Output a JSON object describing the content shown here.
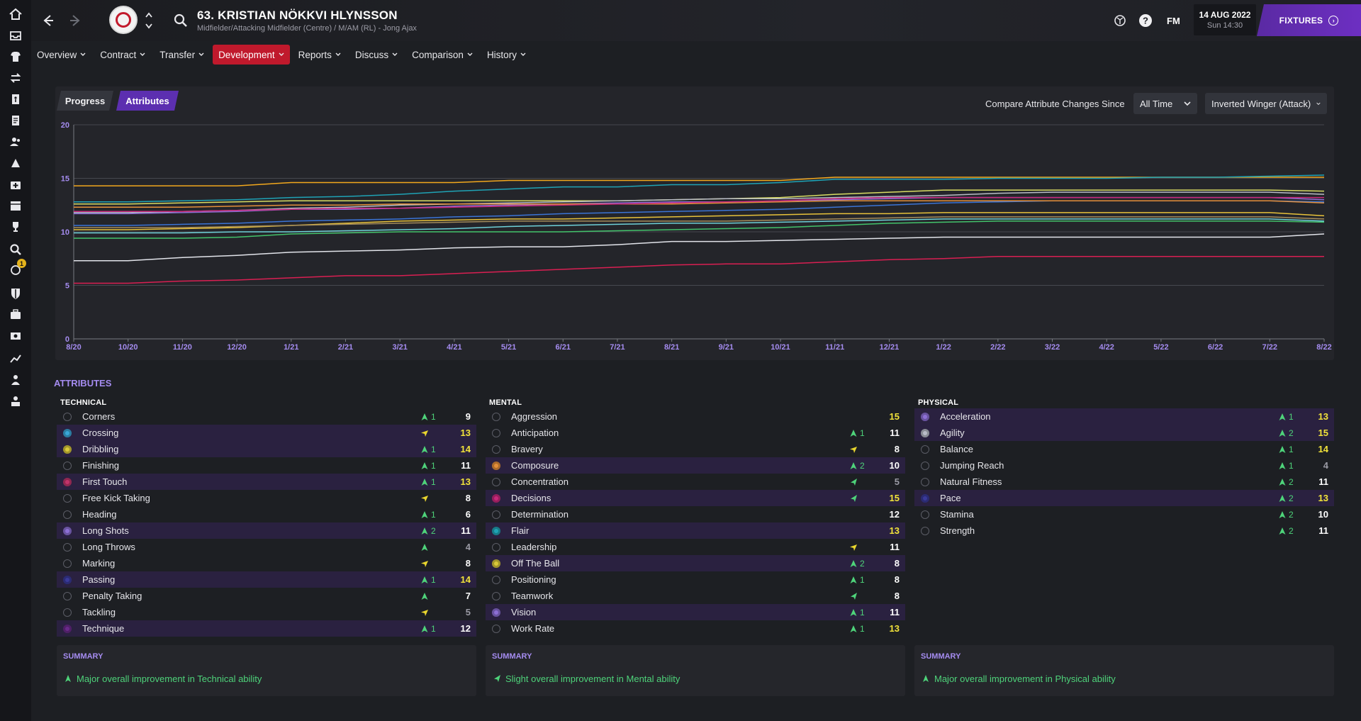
{
  "header": {
    "player_name": "63. KRISTIAN NÖKKVI HLYNSSON",
    "player_subtitle": "Midfielder/Attacking Midfielder (Centre) / M/AM (RL) - Jong Ajax",
    "fm_label": "FM",
    "date": "14 AUG 2022",
    "time": "Sun 14:30",
    "fixtures_label": "FIXTURES"
  },
  "sidebar": {
    "items": [
      "home-icon",
      "inbox-icon",
      "squad-icon",
      "transfers-icon",
      "tactics-icon",
      "clipboard-icon",
      "staff-icon",
      "training-icon",
      "medical-icon",
      "calendar-icon",
      "trophy-icon",
      "search-icon",
      "scouting-icon",
      "club-icon",
      "finances-icon",
      "money-icon",
      "analytics-icon",
      "development-icon",
      "career-icon"
    ],
    "badge": "1"
  },
  "tabs": [
    {
      "label": "Overview"
    },
    {
      "label": "Contract"
    },
    {
      "label": "Transfer"
    },
    {
      "label": "Development"
    },
    {
      "label": "Reports"
    },
    {
      "label": "Discuss"
    },
    {
      "label": "Comparison"
    },
    {
      "label": "History"
    }
  ],
  "chart_controls": {
    "progress_label": "Progress",
    "attributes_label": "Attributes",
    "compare_label": "Compare Attribute Changes Since",
    "period_value": "All Time",
    "role_value": "Inverted Winger (Attack)"
  },
  "chart_data": {
    "type": "line",
    "x": [
      "8/20",
      "10/20",
      "11/20",
      "12/20",
      "1/21",
      "2/21",
      "3/21",
      "4/21",
      "5/21",
      "6/21",
      "7/21",
      "8/21",
      "9/21",
      "10/21",
      "11/21",
      "12/21",
      "1/22",
      "2/22",
      "3/22",
      "4/22",
      "5/22",
      "6/22",
      "7/22",
      "8/22"
    ],
    "ylim": [
      0,
      20
    ],
    "yticks": [
      0,
      5,
      10,
      15,
      20
    ],
    "grid": true,
    "series": [
      {
        "color": "#f2a81d",
        "values": [
          14.3,
          14.3,
          14.3,
          14.3,
          14.6,
          14.6,
          14.6,
          14.6,
          14.8,
          14.8,
          14.8,
          14.8,
          14.8,
          14.8,
          15.1,
          15.1,
          15.1,
          15.1,
          15.1,
          15.1,
          15.1,
          15.1,
          15.1,
          15.1
        ]
      },
      {
        "color": "#1fa3b5",
        "values": [
          12.8,
          12.8,
          12.9,
          13.0,
          13.2,
          13.3,
          13.5,
          13.8,
          14.0,
          14.2,
          14.2,
          14.4,
          14.4,
          14.6,
          14.9,
          14.9,
          14.9,
          15.0,
          15.0,
          15.0,
          15.1,
          15.1,
          15.2,
          15.3
        ]
      },
      {
        "color": "#d9dd63",
        "values": [
          12.6,
          12.6,
          12.7,
          12.8,
          12.9,
          12.9,
          12.9,
          12.9,
          12.9,
          12.9,
          12.9,
          13.0,
          13.1,
          13.2,
          13.5,
          13.7,
          13.9,
          13.9,
          13.9,
          13.9,
          13.9,
          13.9,
          13.9,
          13.8
        ]
      },
      {
        "color": "#b9bcc7",
        "values": [
          11.8,
          11.8,
          11.9,
          12.0,
          12.2,
          12.3,
          12.5,
          12.6,
          12.7,
          12.8,
          12.9,
          13.0,
          13.1,
          13.1,
          13.2,
          13.3,
          13.4,
          13.6,
          13.7,
          13.7,
          13.7,
          13.7,
          13.7,
          13.5
        ]
      },
      {
        "color": "#8d6fd6",
        "values": [
          11.7,
          11.7,
          11.8,
          11.9,
          12.1,
          12.1,
          12.2,
          12.4,
          12.5,
          12.6,
          12.7,
          12.8,
          12.8,
          12.9,
          13.0,
          13.1,
          13.2,
          13.2,
          13.2,
          13.2,
          13.2,
          13.2,
          13.2,
          13.0
        ]
      },
      {
        "color": "#3b74d6",
        "values": [
          10.6,
          10.6,
          10.7,
          10.8,
          11.0,
          11.1,
          11.2,
          11.4,
          11.5,
          11.7,
          11.8,
          11.9,
          12.0,
          12.1,
          12.3,
          12.5,
          12.7,
          12.8,
          12.9,
          12.9,
          12.9,
          12.9,
          12.9,
          12.8
        ]
      },
      {
        "color": "#e48f3a",
        "values": [
          12.3,
          12.3,
          12.3,
          12.4,
          12.5,
          12.5,
          12.6,
          12.6,
          12.6,
          12.6,
          12.6,
          12.6,
          12.7,
          12.8,
          12.9,
          12.9,
          12.9,
          12.9,
          12.9,
          12.9,
          12.9,
          12.9,
          12.9,
          12.7
        ]
      },
      {
        "color": "#c9287b",
        "values": [
          11.9,
          11.9,
          11.9,
          12.0,
          12.1,
          12.2,
          12.2,
          12.3,
          12.4,
          12.5,
          12.6,
          12.7,
          12.8,
          12.9,
          13.1,
          13.2,
          13.2,
          13.2,
          13.2,
          13.2,
          13.2,
          13.2,
          13.2,
          13.2
        ]
      },
      {
        "color": "#e8c23a",
        "values": [
          10.2,
          10.2,
          10.3,
          10.4,
          10.6,
          10.8,
          11.0,
          11.1,
          11.2,
          11.2,
          11.3,
          11.4,
          11.5,
          11.6,
          11.7,
          11.7,
          11.8,
          11.8,
          11.8,
          11.8,
          11.8,
          11.8,
          11.8,
          11.5
        ]
      },
      {
        "color": "#a58c5a",
        "values": [
          10.4,
          10.4,
          10.4,
          10.5,
          10.6,
          10.7,
          10.8,
          10.9,
          11.0,
          11.0,
          11.0,
          11.0,
          11.0,
          11.1,
          11.2,
          11.3,
          11.4,
          11.4,
          11.4,
          11.4,
          11.4,
          11.4,
          11.4,
          11.2
        ]
      },
      {
        "color": "#43c36b",
        "values": [
          9.4,
          9.4,
          9.4,
          9.5,
          9.8,
          9.9,
          10.0,
          10.0,
          10.0,
          10.0,
          10.1,
          10.2,
          10.3,
          10.4,
          10.6,
          10.8,
          10.9,
          11.0,
          11.0,
          11.0,
          11.0,
          11.0,
          11.0,
          10.9
        ]
      },
      {
        "color": "#6fd1d8",
        "values": [
          9.9,
          9.9,
          9.9,
          10.0,
          10.0,
          10.1,
          10.2,
          10.3,
          10.5,
          10.6,
          10.7,
          10.8,
          10.8,
          10.9,
          11.0,
          11.1,
          11.2,
          11.2,
          11.2,
          11.2,
          11.2,
          11.2,
          11.2,
          11.0
        ]
      },
      {
        "color": "#e2e4ea",
        "values": [
          7.3,
          7.3,
          7.6,
          7.8,
          8.1,
          8.2,
          8.3,
          8.5,
          8.6,
          8.6,
          8.8,
          9.1,
          9.1,
          9.2,
          9.3,
          9.4,
          9.5,
          9.5,
          9.5,
          9.5,
          9.5,
          9.5,
          9.5,
          9.8
        ]
      },
      {
        "color": "#d91f52",
        "values": [
          5.2,
          5.2,
          5.4,
          5.5,
          5.7,
          5.9,
          5.9,
          6.1,
          6.3,
          6.5,
          6.7,
          6.9,
          7.0,
          7.0,
          7.2,
          7.4,
          7.5,
          7.7,
          7.7,
          7.7,
          7.7,
          7.7,
          7.7,
          7.7
        ]
      }
    ]
  },
  "attributes": {
    "title": "ATTRIBUTES",
    "columns": [
      {
        "heading": "TECHNICAL",
        "rows": [
          {
            "name": "Corners",
            "change": "up",
            "change_num": "1",
            "value": "9",
            "hl": false,
            "role": ""
          },
          {
            "name": "Crossing",
            "change": "slight",
            "change_num": "",
            "value": "13",
            "hl": true,
            "role": "#3aa7d9"
          },
          {
            "name": "Dribbling",
            "change": "up",
            "change_num": "1",
            "value": "14",
            "hl": true,
            "role": "#d9c93a"
          },
          {
            "name": "Finishing",
            "change": "up",
            "change_num": "1",
            "value": "11",
            "hl": false,
            "role": ""
          },
          {
            "name": "First Touch",
            "change": "up",
            "change_num": "1",
            "value": "13",
            "hl": true,
            "role": "#c2346b"
          },
          {
            "name": "Free Kick Taking",
            "change": "slight",
            "change_num": "",
            "value": "8",
            "hl": false,
            "role": ""
          },
          {
            "name": "Heading",
            "change": "up",
            "change_num": "1",
            "value": "6",
            "hl": false,
            "role": ""
          },
          {
            "name": "Long Shots",
            "change": "up",
            "change_num": "2",
            "value": "11",
            "hl": true,
            "role": "#8d6fd6"
          },
          {
            "name": "Long Throws",
            "change": "up",
            "change_num": "",
            "value": "4",
            "hl": false,
            "role": ""
          },
          {
            "name": "Marking",
            "change": "slight",
            "change_num": "",
            "value": "8",
            "hl": false,
            "role": ""
          },
          {
            "name": "Passing",
            "change": "up",
            "change_num": "1",
            "value": "14",
            "hl": true,
            "role": "#3a3a9a"
          },
          {
            "name": "Penalty Taking",
            "change": "up",
            "change_num": "",
            "value": "7",
            "hl": false,
            "role": ""
          },
          {
            "name": "Tackling",
            "change": "slight",
            "change_num": "",
            "value": "5",
            "hl": false,
            "role": ""
          },
          {
            "name": "Technique",
            "change": "up",
            "change_num": "1",
            "value": "12",
            "hl": true,
            "role": "#6a2a8a"
          }
        ]
      },
      {
        "heading": "MENTAL",
        "rows": [
          {
            "name": "Aggression",
            "change": "",
            "change_num": "",
            "value": "15",
            "hl": false,
            "role": ""
          },
          {
            "name": "Anticipation",
            "change": "up",
            "change_num": "1",
            "value": "11",
            "hl": false,
            "role": ""
          },
          {
            "name": "Bravery",
            "change": "slight",
            "change_num": "",
            "value": "8",
            "hl": false,
            "role": ""
          },
          {
            "name": "Composure",
            "change": "up",
            "change_num": "2",
            "value": "10",
            "hl": true,
            "role": "#e48f3a"
          },
          {
            "name": "Concentration",
            "change": "slightup",
            "change_num": "",
            "value": "5",
            "hl": false,
            "role": ""
          },
          {
            "name": "Decisions",
            "change": "slightup",
            "change_num": "",
            "value": "15",
            "hl": true,
            "role": "#c9287b"
          },
          {
            "name": "Determination",
            "change": "",
            "change_num": "",
            "value": "12",
            "hl": false,
            "role": ""
          },
          {
            "name": "Flair",
            "change": "",
            "change_num": "",
            "value": "13",
            "hl": true,
            "role": "#1fa3b5"
          },
          {
            "name": "Leadership",
            "change": "slight",
            "change_num": "",
            "value": "11",
            "hl": false,
            "role": ""
          },
          {
            "name": "Off The Ball",
            "change": "up",
            "change_num": "2",
            "value": "8",
            "hl": true,
            "role": "#d9c93a"
          },
          {
            "name": "Positioning",
            "change": "up",
            "change_num": "1",
            "value": "8",
            "hl": false,
            "role": ""
          },
          {
            "name": "Teamwork",
            "change": "slightup",
            "change_num": "",
            "value": "8",
            "hl": false,
            "role": ""
          },
          {
            "name": "Vision",
            "change": "up",
            "change_num": "1",
            "value": "11",
            "hl": true,
            "role": "#8d6fd6"
          },
          {
            "name": "Work Rate",
            "change": "up",
            "change_num": "1",
            "value": "13",
            "hl": false,
            "role": ""
          }
        ]
      },
      {
        "heading": "PHYSICAL",
        "rows": [
          {
            "name": "Acceleration",
            "change": "up",
            "change_num": "1",
            "value": "13",
            "hl": true,
            "role": "#8d6fd6"
          },
          {
            "name": "Agility",
            "change": "up",
            "change_num": "2",
            "value": "15",
            "hl": true,
            "role": "#b9bcc7"
          },
          {
            "name": "Balance",
            "change": "up",
            "change_num": "1",
            "value": "14",
            "hl": false,
            "role": ""
          },
          {
            "name": "Jumping Reach",
            "change": "up",
            "change_num": "1",
            "value": "4",
            "hl": false,
            "role": ""
          },
          {
            "name": "Natural Fitness",
            "change": "up",
            "change_num": "2",
            "value": "11",
            "hl": false,
            "role": ""
          },
          {
            "name": "Pace",
            "change": "up",
            "change_num": "2",
            "value": "13",
            "hl": true,
            "role": "#3a3a9a"
          },
          {
            "name": "Stamina",
            "change": "up",
            "change_num": "2",
            "value": "10",
            "hl": false,
            "role": ""
          },
          {
            "name": "Strength",
            "change": "up",
            "change_num": "2",
            "value": "11",
            "hl": false,
            "role": ""
          }
        ]
      }
    ]
  },
  "summaries": [
    {
      "title": "SUMMARY",
      "text": "Major overall improvement in Technical ability",
      "icon": "up"
    },
    {
      "title": "SUMMARY",
      "text": "Slight overall improvement in Mental ability",
      "icon": "slightup"
    },
    {
      "title": "SUMMARY",
      "text": "Major overall improvement in Physical ability",
      "icon": "up"
    }
  ],
  "colors": {
    "accent_purple": "#5c2fb0",
    "active_tab_red": "#c0192c",
    "value_yellow": "#f2e33a",
    "value_white": "#ffffff",
    "value_grey": "#9a9aa4",
    "improve_green": "#4ed37a"
  }
}
